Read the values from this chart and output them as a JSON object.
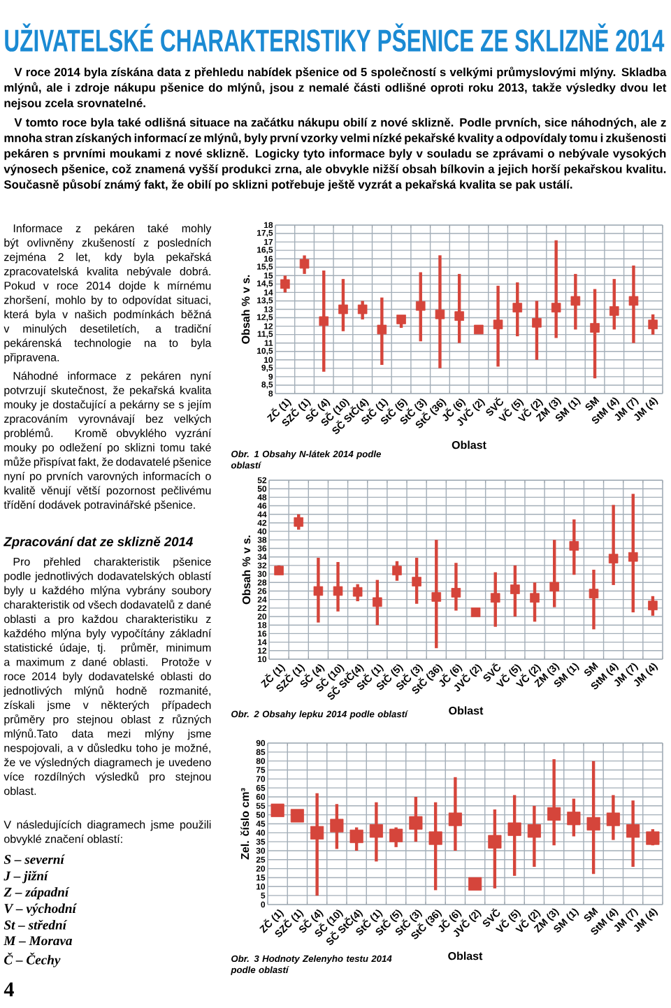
{
  "chart_data": [
    {
      "type": "scatter",
      "title": "Obr. 1 Obsahy N-látek 2014 podle oblastí",
      "xlabel": "Oblast",
      "ylabel": "Obsah % v s.",
      "marker": "square",
      "grid": true,
      "color": "#d5453b",
      "annotations": [
        "UŽIVATELSKÉ CHARAKTERISTIKY PŠENICE ZE SKLIZNĚ 2014",
        "V roce 2014 byla získána data z přehledu nabídek pšenice od 5 společností s velkými průmyslovými mlýny. Skladba mlýnů, ale i zdroje nákupu pšenice do mlýnů, jsou z nemalé části odlišné oproti roku 2013, takže výsledky dvou let nejsou zcela srovnatelné.",
        "V tomto roce byla také odlišná situace na začátku nákupu obilí z nové sklizně. Podle prvních, sice náhodných, ale z mnoha stran získaných informací ze mlýnů, byly první vzorky velmi nízké pekařské kvality a odpovídaly tomu i zkušenosti pekáren s prvními moukami z nové sklizně. Logicky tyto informace byly v souladu se zprávami o nebývale vysokých výnosech pšenice, což znamená vyšší produkci zrna, ale obvykle nižší obsah bílkovin a jejich horší pekařskou kvalitu. Současně působí známý fakt, že obilí po sklizni potřebuje ještě vyzrát a pekařská kvalita se pak ustálí.",
        "Informace z pekáren také mohly být ovlivněny zkušeností z posledních zejména 2 let, kdy byla pekařská zpracovatelská kvalita nebývale dobrá. Pokud v roce 2014 dojde k mírnému zhoršení, mohlo by to odpovídat situaci, která byla v našich podmínkách běžná v minulých desetiletích, a tradiční pekárenská technologie na to byla připravena.",
        "Náhodné informace z pekáren nyní potvrzují skutečnost, že pekařská kvalita mouky je dostačující a pekárny se s jejím zpracováním vyrovnávají bez velkých problémů. Kromě obvyklého vyzrání mouky po odležení po sklizni tomu také může přispívat fakt, že dodavatelé pšenice nyní po prvních varovných informacích o kvalitě věnují větší pozornost pečlivému třídění dodávek potravinářské pšenice.",
        "Zpracování dat ze sklizně 2014",
        "Pro přehled charakteristik pšenice podle jednotlivých dodavatelských oblastí byly u každého mlýna vybrány soubory charakteristik od všech dodavatelů z dané oblasti a pro každou charakteristiku z každého mlýna byly vypočítány základní statistické údaje, tj. průměr, minimum a maximum z dané oblasti. Protože v roce 2014 byly dodavatelské oblasti do jednotlivých mlýnů hodně rozmanité, získali jsme v některých případech průměry pro stejnou oblast z různých mlýnů.Tato data mezi mlýny jsme nespojovali, a v důsledku toho je možné, že ve výsledných diagramech je uvedeno více rozdílných výsledků pro stejnou oblast.",
        "V následujících diagramech jsme použili obvyklé značení oblastí:",
        "S – severní",
        "J – jižní",
        "Z – západní",
        "V – východní",
        "St – střední",
        "M – Morava",
        "Č – Čechy",
        "4"
      ],
      "categories": [
        "ZČ (1)",
        "SZČ (1)",
        "SČ (4)",
        "SČ (10)",
        "SČ StČ(4)",
        "StČ (1)",
        "StČ (5)",
        "StČ (3)",
        "StČ (36)",
        "JČ (6)",
        "JVČ (2)",
        "SVČ",
        "VČ (5)",
        "VČ (2)",
        "ZM (3)",
        "SM (1)",
        "SM",
        "StM (4)",
        "JM (7)",
        "JM (4)"
      ],
      "values": [
        14.5,
        15.7,
        12.3,
        13.0,
        13.0,
        11.8,
        12.4,
        13.2,
        12.7,
        12.6,
        11.8,
        12.1,
        13.1,
        12.2,
        13.1,
        13.5,
        11.9,
        12.9,
        13.5,
        12.1
      ],
      "errors": [
        [
          14,
          15
        ],
        [
          15.1,
          16.2
        ],
        [
          9.3,
          15.3
        ],
        [
          11.7,
          14.8
        ],
        [
          12.4,
          13.5
        ],
        [
          9.7,
          13.7
        ],
        [
          11.9,
          12.6
        ],
        [
          11.1,
          15.2
        ],
        [
          9.5,
          16.2
        ],
        [
          11,
          15.1
        ],
        null,
        [
          9.6,
          14.4
        ],
        [
          11.4,
          14.6
        ],
        [
          10,
          13.5
        ],
        [
          11.3,
          17.1
        ],
        [
          11.8,
          15.1
        ],
        [
          8.9,
          14.2
        ],
        [
          11.8,
          14.8
        ],
        [
          11,
          15.6
        ],
        [
          11.5,
          12.7
        ]
      ],
      "ylim": [
        8,
        18
      ],
      "yticks": [
        8,
        {
          "value": 8.5,
          "label": "8,5"
        },
        9,
        {
          "value": 9.5,
          "label": "9,5"
        },
        10,
        {
          "value": 10.5,
          "label": "10,5"
        },
        11,
        {
          "value": 11.5,
          "label": "11,5"
        },
        12,
        {
          "value": 12.5,
          "label": "12,5"
        },
        13,
        {
          "value": 13.5,
          "label": "13,5"
        },
        14,
        {
          "value": 14.5,
          "label": "14,5"
        },
        15,
        {
          "value": 15.5,
          "label": "15,5"
        },
        16,
        {
          "value": 16.5,
          "label": "16,5"
        },
        17,
        {
          "value": 17.5,
          "label": "17,5"
        },
        18
      ]
    },
    {
      "type": "scatter",
      "title": "Obr. 2 Obsahy lepku 2014 podle oblastí",
      "xlabel": "Oblast",
      "ylabel": "Obsah % v s.",
      "marker": "square",
      "grid": true,
      "color": "#d5453b",
      "categories": [
        "ZČ (1)",
        "SZČ (1)",
        "SČ (4)",
        "SČ (10)",
        "SČ StČ(4)",
        "StČ (1)",
        "StČ (5)",
        "StČ (3)",
        "StČ (36)",
        "JČ (6)",
        "JVČ (2)",
        "SVČ",
        "VČ (5)",
        "VČ (2)",
        "ZM (3)",
        "SM (1)",
        "SM",
        "StM (4)",
        "JM (7)",
        "JM (4)"
      ],
      "values": [
        30.8,
        42.2,
        26,
        26,
        25.8,
        23.4,
        30.8,
        28.2,
        24.6,
        25.6,
        21,
        24.4,
        26.4,
        24.4,
        27,
        36.6,
        25.4,
        33.6,
        34,
        22.6
      ],
      "errors": [
        [
          29.8,
          32
        ],
        [
          40.4,
          44
        ],
        [
          18.6,
          33.8
        ],
        [
          21.2,
          32.8
        ],
        [
          23.6,
          27.6
        ],
        [
          18,
          28.6
        ],
        [
          28.4,
          33
        ],
        [
          23,
          33.8
        ],
        [
          12.6,
          38
        ],
        [
          21.4,
          32.6
        ],
        null,
        [
          17.6,
          30.4
        ],
        [
          20,
          32
        ],
        [
          18.8,
          28
        ],
        [
          22.2,
          38
        ],
        [
          29.8,
          42.8
        ],
        [
          17,
          31
        ],
        [
          27.4,
          46.2
        ],
        [
          21,
          48.8
        ],
        [
          20.2,
          24.8
        ]
      ],
      "ylim": [
        10,
        52
      ],
      "yticks": [
        10,
        12,
        14,
        16,
        18,
        20,
        22,
        24,
        26,
        28,
        30,
        32,
        34,
        36,
        38,
        40,
        42,
        44,
        46,
        48,
        50,
        52
      ]
    },
    {
      "type": "scatter",
      "title": "Obr. 3 Hodnoty Zelenyho testu 2014 podle oblastí",
      "xlabel": "Oblast",
      "ylabel": "Zel. číslo cm³",
      "marker": "square",
      "grid": true,
      "color": "#d5453b",
      "categories": [
        "ZČ (1)",
        "SZČ (1)",
        "SČ (4)",
        "SČ (10)",
        "SČ StČ(4)",
        "StČ (1)",
        "StČ (5)",
        "StČ (3)",
        "StČ (36)",
        "JČ (6)",
        "JVČ (2)",
        "SVČ",
        "VČ (5)",
        "VČ (2)",
        "ZM (3)",
        "SM (1)",
        "SM",
        "StM (4)",
        "JM (7)",
        "JM (4)"
      ],
      "values": [
        52.5,
        49.5,
        40,
        44,
        38,
        41,
        38.5,
        45.5,
        37,
        47.5,
        11.5,
        35,
        42,
        41,
        50.5,
        48,
        45,
        47.5,
        41,
        37
      ],
      "errors": [
        null,
        null,
        [
          5,
          62
        ],
        [
          31,
          56
        ],
        [
          30,
          43
        ],
        [
          24,
          57
        ],
        [
          32,
          43
        ],
        [
          35,
          60
        ],
        [
          8,
          57
        ],
        [
          30,
          71
        ],
        null,
        [
          9,
          53
        ],
        [
          16,
          61
        ],
        [
          21,
          55
        ],
        [
          33,
          81
        ],
        [
          38,
          59
        ],
        [
          17,
          80
        ],
        [
          36,
          61
        ],
        [
          21,
          58
        ],
        [
          33,
          42
        ]
      ],
      "ylim": [
        0,
        90
      ],
      "yticks": [
        0,
        5,
        10,
        15,
        20,
        25,
        30,
        35,
        40,
        45,
        50,
        55,
        60,
        65,
        70,
        75,
        80,
        85,
        90
      ]
    }
  ]
}
